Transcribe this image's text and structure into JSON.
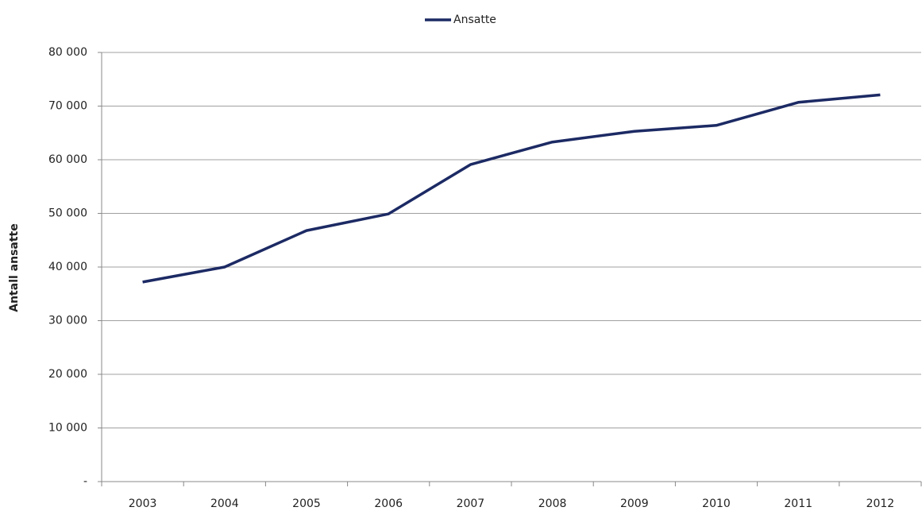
{
  "chart_data": {
    "type": "line",
    "y_label": "Antall ansatte",
    "categories": [
      "2003",
      "2004",
      "2005",
      "2006",
      "2007",
      "2008",
      "2009",
      "2010",
      "2011",
      "2012"
    ],
    "series": [
      {
        "name": "Ansatte",
        "color": "#1c2a64",
        "values": [
          37200,
          40000,
          46800,
          49900,
          59100,
          63300,
          65300,
          66400,
          70700,
          72100
        ]
      }
    ],
    "ylim": [
      0,
      80000
    ],
    "yticks": [
      {
        "value": 0,
        "label": "-"
      },
      {
        "value": 10000,
        "label": "10 000"
      },
      {
        "value": 20000,
        "label": "20 000"
      },
      {
        "value": 30000,
        "label": "30 000"
      },
      {
        "value": 40000,
        "label": "40 000"
      },
      {
        "value": 50000,
        "label": "50 000"
      },
      {
        "value": 60000,
        "label": "60 000"
      },
      {
        "value": 70000,
        "label": "70 000"
      },
      {
        "value": 80000,
        "label": "80 000"
      }
    ],
    "grid": true,
    "legend": "top"
  }
}
